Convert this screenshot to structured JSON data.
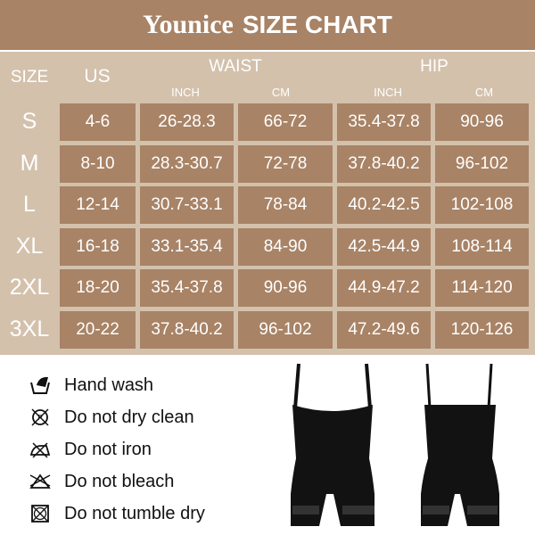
{
  "header": {
    "brand": "Younice",
    "title": "SIZE CHART"
  },
  "table": {
    "headers": {
      "size": "SIZE",
      "us": "US",
      "waist": "WAIST",
      "hip": "HIP",
      "inch": "INCH",
      "cm": "CM"
    },
    "rows": [
      {
        "size": "S",
        "us": "4-6",
        "waist_inch": "26-28.3",
        "waist_cm": "66-72",
        "hip_inch": "35.4-37.8",
        "hip_cm": "90-96"
      },
      {
        "size": "M",
        "us": "8-10",
        "waist_inch": "28.3-30.7",
        "waist_cm": "72-78",
        "hip_inch": "37.8-40.2",
        "hip_cm": "96-102"
      },
      {
        "size": "L",
        "us": "12-14",
        "waist_inch": "30.7-33.1",
        "waist_cm": "78-84",
        "hip_inch": "40.2-42.5",
        "hip_cm": "102-108"
      },
      {
        "size": "XL",
        "us": "16-18",
        "waist_inch": "33.1-35.4",
        "waist_cm": "84-90",
        "hip_inch": "42.5-44.9",
        "hip_cm": "108-114"
      },
      {
        "size": "2XL",
        "us": "18-20",
        "waist_inch": "35.4-37.8",
        "waist_cm": "90-96",
        "hip_inch": "44.9-47.2",
        "hip_cm": "114-120"
      },
      {
        "size": "3XL",
        "us": "20-22",
        "waist_inch": "37.8-40.2",
        "waist_cm": "96-102",
        "hip_inch": "47.2-49.6",
        "hip_cm": "120-126"
      }
    ]
  },
  "care": [
    {
      "icon": "hand-wash-icon",
      "label": "Hand wash"
    },
    {
      "icon": "no-dry-clean-icon",
      "label": "Do not dry clean"
    },
    {
      "icon": "no-iron-icon",
      "label": "Do not iron"
    },
    {
      "icon": "no-bleach-icon",
      "label": "Do not bleach"
    },
    {
      "icon": "no-tumble-dry-icon",
      "label": "Do not tumble dry"
    }
  ],
  "colors": {
    "header": "#a88366",
    "table_bg": "#d3c1ac",
    "cell": "#a88366",
    "text": "#ffffff"
  }
}
